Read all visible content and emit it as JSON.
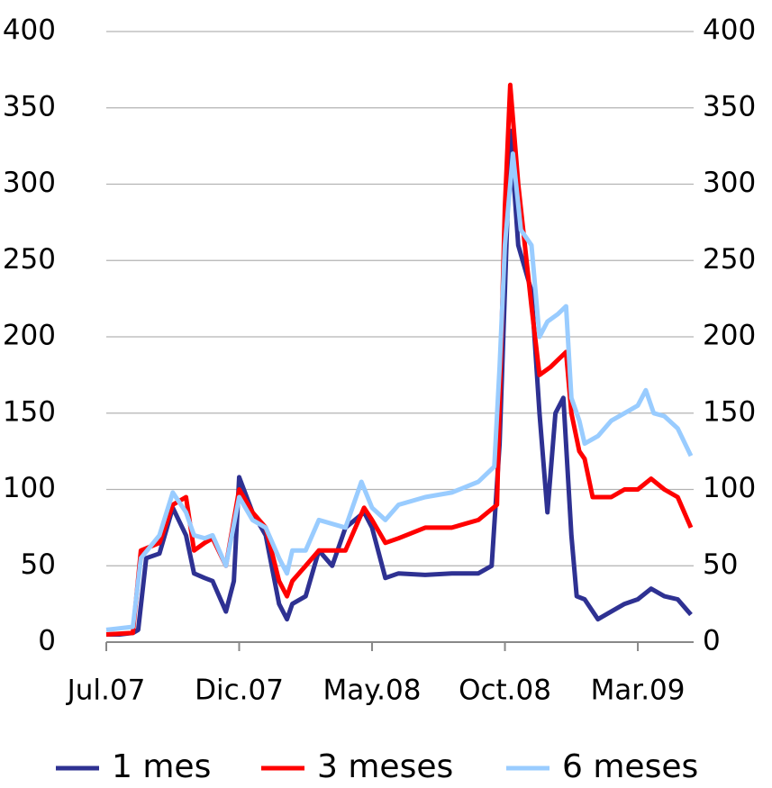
{
  "chart_data": {
    "type": "line",
    "xlim": [
      0,
      22.1
    ],
    "xticks": [
      {
        "value": 0,
        "label": "Jul.07"
      },
      {
        "value": 5,
        "label": "Dic.07"
      },
      {
        "value": 10,
        "label": "May.08"
      },
      {
        "value": 15,
        "label": "Oct.08"
      },
      {
        "value": 20,
        "label": "Mar.09"
      }
    ],
    "ylim": [
      0,
      400
    ],
    "yticks": [
      0,
      50,
      100,
      150,
      200,
      250,
      300,
      350,
      400
    ],
    "y2lim": [
      0,
      400
    ],
    "y2ticks": [
      0,
      50,
      100,
      150,
      200,
      250,
      300,
      350,
      400
    ],
    "grid": true,
    "legend": "bottom",
    "series": [
      {
        "name": "1 mes",
        "color": "#2e3192",
        "x": [
          0,
          0.5,
          1,
          1.2,
          1.5,
          2,
          2.5,
          3,
          3.3,
          3.7,
          4,
          4.5,
          4.8,
          5,
          5.5,
          6,
          6.5,
          6.8,
          7,
          7.5,
          8,
          8.5,
          9,
          9.7,
          10,
          10.5,
          11,
          12,
          13,
          14,
          14.5,
          14.8,
          15,
          15.2,
          15.5,
          16,
          16.3,
          16.6,
          16.9,
          17.2,
          17.5,
          17.7,
          18,
          18.5,
          19,
          19.5,
          20,
          20.5,
          21,
          21.5,
          22
        ],
        "values": [
          5,
          5,
          6,
          8,
          55,
          58,
          88,
          70,
          45,
          42,
          40,
          20,
          40,
          108,
          85,
          70,
          25,
          15,
          25,
          30,
          60,
          50,
          75,
          85,
          75,
          42,
          45,
          44,
          45,
          45,
          50,
          130,
          230,
          335,
          260,
          230,
          150,
          85,
          150,
          160,
          70,
          30,
          28,
          15,
          20,
          25,
          28,
          35,
          30,
          28,
          18
        ]
      },
      {
        "name": "3 meses",
        "color": "#ff0000",
        "x": [
          0,
          1,
          1.3,
          2,
          2.5,
          3,
          3.3,
          3.7,
          4,
          4.5,
          5,
          5.5,
          6,
          6.5,
          6.8,
          7,
          7.5,
          8,
          9,
          9.7,
          10,
          10.5,
          11,
          12,
          13,
          14,
          14.7,
          15,
          15.2,
          15.5,
          16,
          16.3,
          16.7,
          17,
          17.3,
          17.5,
          17.8,
          18,
          18.3,
          19,
          19.5,
          20,
          20.5,
          21,
          21.5,
          22
        ],
        "values": [
          5,
          6,
          60,
          65,
          90,
          95,
          60,
          65,
          68,
          50,
          100,
          85,
          75,
          40,
          30,
          40,
          50,
          60,
          60,
          88,
          80,
          65,
          68,
          75,
          75,
          80,
          90,
          285,
          365,
          300,
          220,
          175,
          180,
          185,
          190,
          150,
          125,
          120,
          95,
          95,
          100,
          100,
          107,
          100,
          95,
          75
        ]
      },
      {
        "name": "6 meses",
        "color": "#99ccff",
        "x": [
          0,
          1,
          1.3,
          2,
          2.5,
          3,
          3.3,
          3.7,
          4,
          4.5,
          5,
          5.5,
          6,
          6.5,
          6.8,
          7,
          7.5,
          8,
          9,
          9.6,
          10,
          10.5,
          11,
          12,
          13,
          14,
          14.6,
          14.8,
          15,
          15.3,
          15.6,
          16,
          16.3,
          16.6,
          17,
          17.3,
          17.5,
          17.8,
          18,
          18.5,
          19,
          19.5,
          20,
          20.3,
          20.6,
          21,
          21.5,
          22
        ],
        "values": [
          8,
          10,
          55,
          70,
          98,
          85,
          70,
          68,
          70,
          50,
          95,
          80,
          75,
          55,
          45,
          60,
          60,
          80,
          75,
          105,
          88,
          80,
          90,
          95,
          98,
          105,
          115,
          180,
          260,
          320,
          270,
          260,
          200,
          210,
          215,
          220,
          160,
          145,
          130,
          135,
          145,
          150,
          155,
          165,
          150,
          148,
          140,
          122
        ]
      }
    ]
  }
}
